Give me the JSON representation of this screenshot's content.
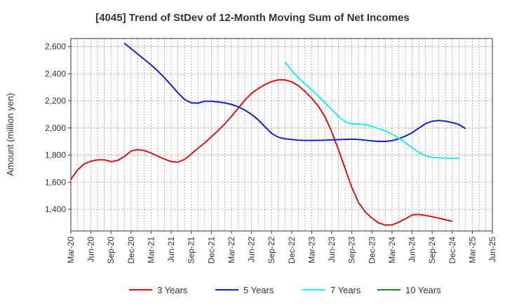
{
  "chart_data": {
    "type": "line",
    "title": "[4045]  Trend of StDev of 12-Month Moving Sum of Net Incomes",
    "xlabel": "",
    "ylabel": "Amount (million yen)",
    "ylim": [
      1240,
      2660
    ],
    "y_ticks": [
      1400,
      1600,
      1800,
      2000,
      2200,
      2400,
      2600
    ],
    "y_tick_labels": [
      "1,400",
      "1,600",
      "1,800",
      "2,000",
      "2,200",
      "2,400",
      "2,600"
    ],
    "x_ticks": [
      "Mar-20",
      "Jun-20",
      "Sep-20",
      "Dec-20",
      "Mar-21",
      "Jun-21",
      "Sep-21",
      "Dec-21",
      "Mar-22",
      "Jun-22",
      "Sep-22",
      "Dec-22",
      "Mar-23",
      "Jun-23",
      "Sep-23",
      "Dec-23",
      "Mar-24",
      "Jun-24",
      "Sep-24",
      "Dec-24",
      "Mar-25",
      "Jun-25"
    ],
    "grid": true,
    "legend_position": "bottom",
    "series": [
      {
        "name": "3 Years",
        "color": "#dd1111",
        "start_month": "Mar-20",
        "values": [
          1620,
          1690,
          1735,
          1755,
          1765,
          1765,
          1752,
          1760,
          1790,
          1830,
          1840,
          1833,
          1815,
          1792,
          1770,
          1752,
          1748,
          1768,
          1808,
          1850,
          1890,
          1935,
          1980,
          2030,
          2085,
          2145,
          2205,
          2255,
          2290,
          2320,
          2342,
          2355,
          2355,
          2340,
          2312,
          2270,
          2220,
          2160,
          2080,
          1970,
          1840,
          1700,
          1560,
          1450,
          1380,
          1335,
          1300,
          1283,
          1285,
          1305,
          1330,
          1358,
          1362,
          1355,
          1345,
          1335,
          1322,
          1312
        ]
      },
      {
        "name": "5 Years",
        "color": "#1122cc",
        "start_month": "Nov-20",
        "values": [
          2625,
          2585,
          2545,
          2505,
          2465,
          2420,
          2370,
          2315,
          2260,
          2210,
          2185,
          2183,
          2197,
          2197,
          2192,
          2185,
          2174,
          2157,
          2132,
          2100,
          2060,
          2010,
          1960,
          1932,
          1920,
          1915,
          1910,
          1908,
          1908,
          1909,
          1910,
          1912,
          1914,
          1916,
          1918,
          1915,
          1910,
          1905,
          1901,
          1901,
          1906,
          1920,
          1940,
          1965,
          1998,
          2032,
          2050,
          2055,
          2050,
          2040,
          2025,
          1995
        ]
      },
      {
        "name": "7 Years",
        "color": "#22eeee",
        "start_month": "Nov-22",
        "values": [
          2485,
          2425,
          2370,
          2325,
          2280,
          2235,
          2185,
          2135,
          2085,
          2045,
          2030,
          2030,
          2025,
          2012,
          1995,
          1978,
          1955,
          1925,
          1890,
          1855,
          1820,
          1795,
          1783,
          1780,
          1777,
          1776,
          1777
        ]
      },
      {
        "name": "10 Years",
        "color": "#228822",
        "start_month": "",
        "values": []
      }
    ]
  }
}
